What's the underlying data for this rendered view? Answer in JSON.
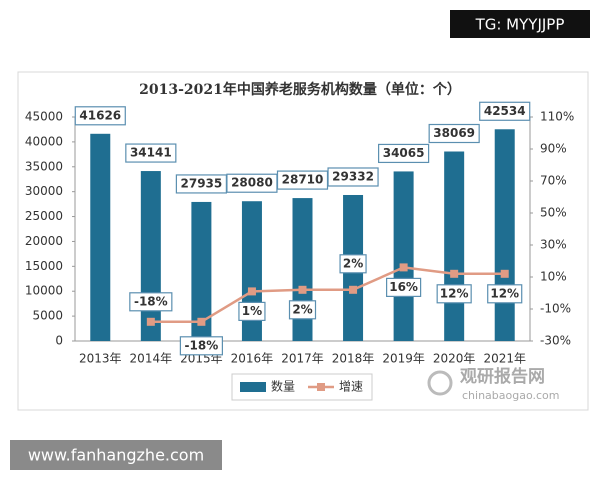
{
  "chart_data": {
    "type": "bar-line",
    "title": "2013-2021年中国养老服务机构数量（单位：个）",
    "categories": [
      "2013年",
      "2014年",
      "2015年",
      "2016年",
      "2017年",
      "2018年",
      "2019年",
      "2020年",
      "2021年"
    ],
    "series": [
      {
        "name": "数量",
        "type": "bar",
        "color": "#1f6e91",
        "values": [
          41626,
          34141,
          27935,
          28080,
          28710,
          29332,
          34065,
          38069,
          42534
        ]
      },
      {
        "name": "增速",
        "type": "line",
        "axis": "y2",
        "color": "#e09b84",
        "values": [
          null,
          -18,
          -18,
          1,
          2,
          2,
          16,
          12,
          12
        ],
        "value_labels": [
          null,
          "-18%",
          "-18%",
          "1%",
          "2%",
          "2%",
          "16%",
          "12%",
          "12%"
        ]
      }
    ],
    "ylim": [
      0,
      45000
    ],
    "yticks": [
      0,
      5000,
      10000,
      15000,
      20000,
      25000,
      30000,
      35000,
      40000,
      45000
    ],
    "y2lim": [
      -30,
      110
    ],
    "y2ticks": [
      {
        "value": -30,
        "label": "-30%"
      },
      {
        "value": -10,
        "label": "-10%"
      },
      {
        "value": 10,
        "label": "10%"
      },
      {
        "value": 30,
        "label": "30%"
      },
      {
        "value": 50,
        "label": "50%"
      },
      {
        "value": 70,
        "label": "70%"
      },
      {
        "value": 90,
        "label": "90%"
      },
      {
        "value": 110,
        "label": "110%"
      }
    ],
    "legend": "bottom"
  },
  "watermarks": [
    "TG: MYYJJPP",
    "www.fanhangzhe.com",
    "观研报告网",
    "chinabaogao.com"
  ]
}
